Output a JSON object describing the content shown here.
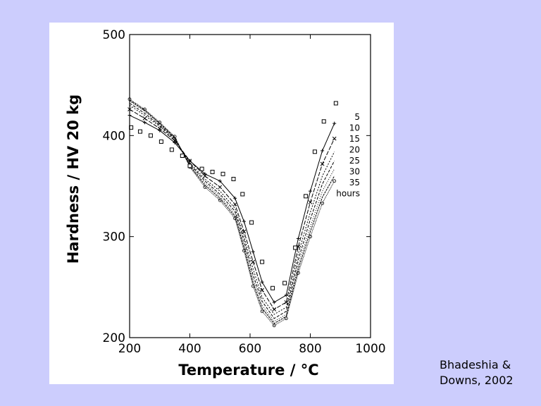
{
  "credit": {
    "line1": "Bhadeshia &",
    "line2": "Downs, 2002"
  },
  "chart_data": {
    "type": "line",
    "xlabel": "Temperature / °C",
    "ylabel": "Hardness / HV 20 kg",
    "xlim": [
      200,
      1000
    ],
    "ylim": [
      200,
      500
    ],
    "xticks": [
      200,
      400,
      600,
      800,
      1000
    ],
    "yticks": [
      200,
      300,
      400,
      500
    ],
    "grid": false,
    "legend_position": "right",
    "legend_unit": "hours",
    "series": [
      {
        "name": "5",
        "dash": "",
        "marker": "+",
        "x": [
          200,
          250,
          300,
          350,
          400,
          450,
          500,
          550,
          580,
          610,
          640,
          680,
          720,
          760,
          800,
          840,
          880
        ],
        "y": [
          420,
          413,
          405,
          393,
          375,
          362,
          355,
          338,
          315,
          285,
          255,
          235,
          242,
          298,
          345,
          385,
          412
        ]
      },
      {
        "name": "10",
        "dash": "6,2",
        "marker": "x",
        "x": [
          200,
          250,
          300,
          350,
          400,
          450,
          500,
          550,
          580,
          610,
          640,
          680,
          720,
          760,
          800,
          840,
          880
        ],
        "y": [
          426,
          417,
          407,
          395,
          375,
          360,
          349,
          332,
          305,
          275,
          247,
          228,
          235,
          290,
          334,
          372,
          397
        ]
      },
      {
        "name": "15",
        "dash": "2,2",
        "marker": "",
        "x": [
          200,
          250,
          300,
          350,
          400,
          450,
          500,
          550,
          580,
          610,
          640,
          680,
          720,
          760,
          800,
          840,
          880
        ],
        "y": [
          430,
          420,
          409,
          396,
          373,
          357,
          345,
          328,
          300,
          268,
          240,
          223,
          230,
          283,
          324,
          360,
          384
        ]
      },
      {
        "name": "20",
        "dash": "4,2",
        "marker": "",
        "x": [
          200,
          250,
          300,
          350,
          400,
          450,
          500,
          550,
          580,
          610,
          640,
          680,
          720,
          760,
          800,
          840,
          880
        ],
        "y": [
          432,
          422,
          410,
          397,
          372,
          355,
          342,
          325,
          296,
          262,
          236,
          219,
          226,
          277,
          317,
          352,
          375
        ]
      },
      {
        "name": "25",
        "dash": "1,2",
        "marker": "",
        "x": [
          200,
          250,
          300,
          350,
          400,
          450,
          500,
          550,
          580,
          610,
          640,
          680,
          720,
          760,
          800,
          840,
          880
        ],
        "y": [
          434,
          424,
          411,
          398,
          371,
          353,
          340,
          322,
          292,
          258,
          232,
          216,
          223,
          272,
          310,
          345,
          367
        ]
      },
      {
        "name": "30",
        "dash": "3,1",
        "marker": "",
        "x": [
          200,
          250,
          300,
          350,
          400,
          450,
          500,
          550,
          580,
          610,
          640,
          680,
          720,
          760,
          800,
          840,
          880
        ],
        "y": [
          435,
          425,
          412,
          398,
          370,
          351,
          338,
          320,
          289,
          254,
          229,
          214,
          221,
          268,
          305,
          339,
          360
        ]
      },
      {
        "name": "35",
        "dash": "1,1",
        "marker": "o",
        "x": [
          200,
          250,
          300,
          350,
          400,
          450,
          500,
          550,
          580,
          610,
          640,
          680,
          720,
          760,
          800,
          840,
          880
        ],
        "y": [
          436,
          426,
          413,
          399,
          369,
          349,
          336,
          318,
          286,
          251,
          226,
          212,
          219,
          264,
          300,
          333,
          355
        ]
      }
    ],
    "squares": {
      "x": [
        205,
        235,
        270,
        305,
        340,
        375,
        400,
        440,
        475,
        510,
        545,
        575,
        605,
        640,
        675,
        715,
        750,
        785,
        815,
        845,
        885
      ],
      "y": [
        408,
        404,
        400,
        394,
        386,
        380,
        370,
        367,
        364,
        362,
        357,
        342,
        314,
        275,
        249,
        254,
        289,
        340,
        384,
        414,
        432
      ]
    }
  }
}
